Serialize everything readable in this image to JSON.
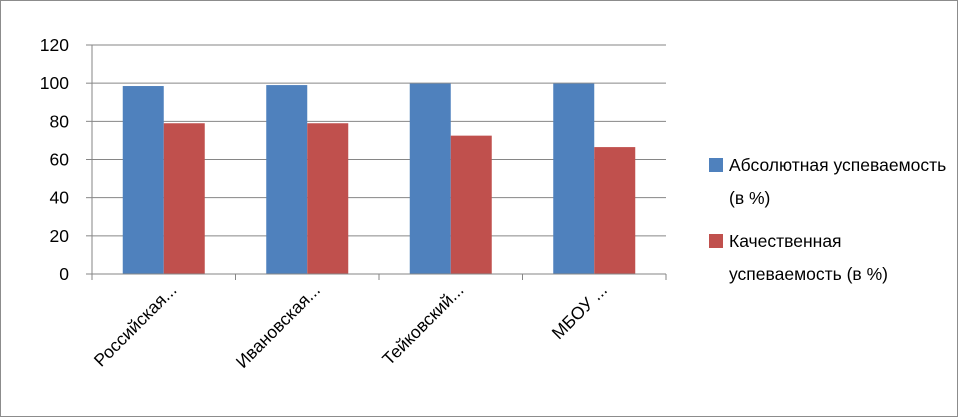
{
  "chart_data": {
    "type": "bar",
    "categories": [
      "Российская...",
      "Ивановская...",
      "Тейковский...",
      "МБОУ ..."
    ],
    "series": [
      {
        "name": "Абсолютная успеваемость (в %)",
        "values": [
          98.5,
          99,
          99.8,
          99.8
        ],
        "color": "#4f81bd"
      },
      {
        "name": "Качественная успеваемость (в %)",
        "values": [
          79,
          79,
          72.5,
          66.5
        ],
        "color": "#c0504d"
      }
    ],
    "ylim": [
      0,
      120
    ],
    "yticks": [
      0,
      20,
      40,
      60,
      80,
      100,
      120
    ],
    "grid": true,
    "legend_position": "right"
  }
}
